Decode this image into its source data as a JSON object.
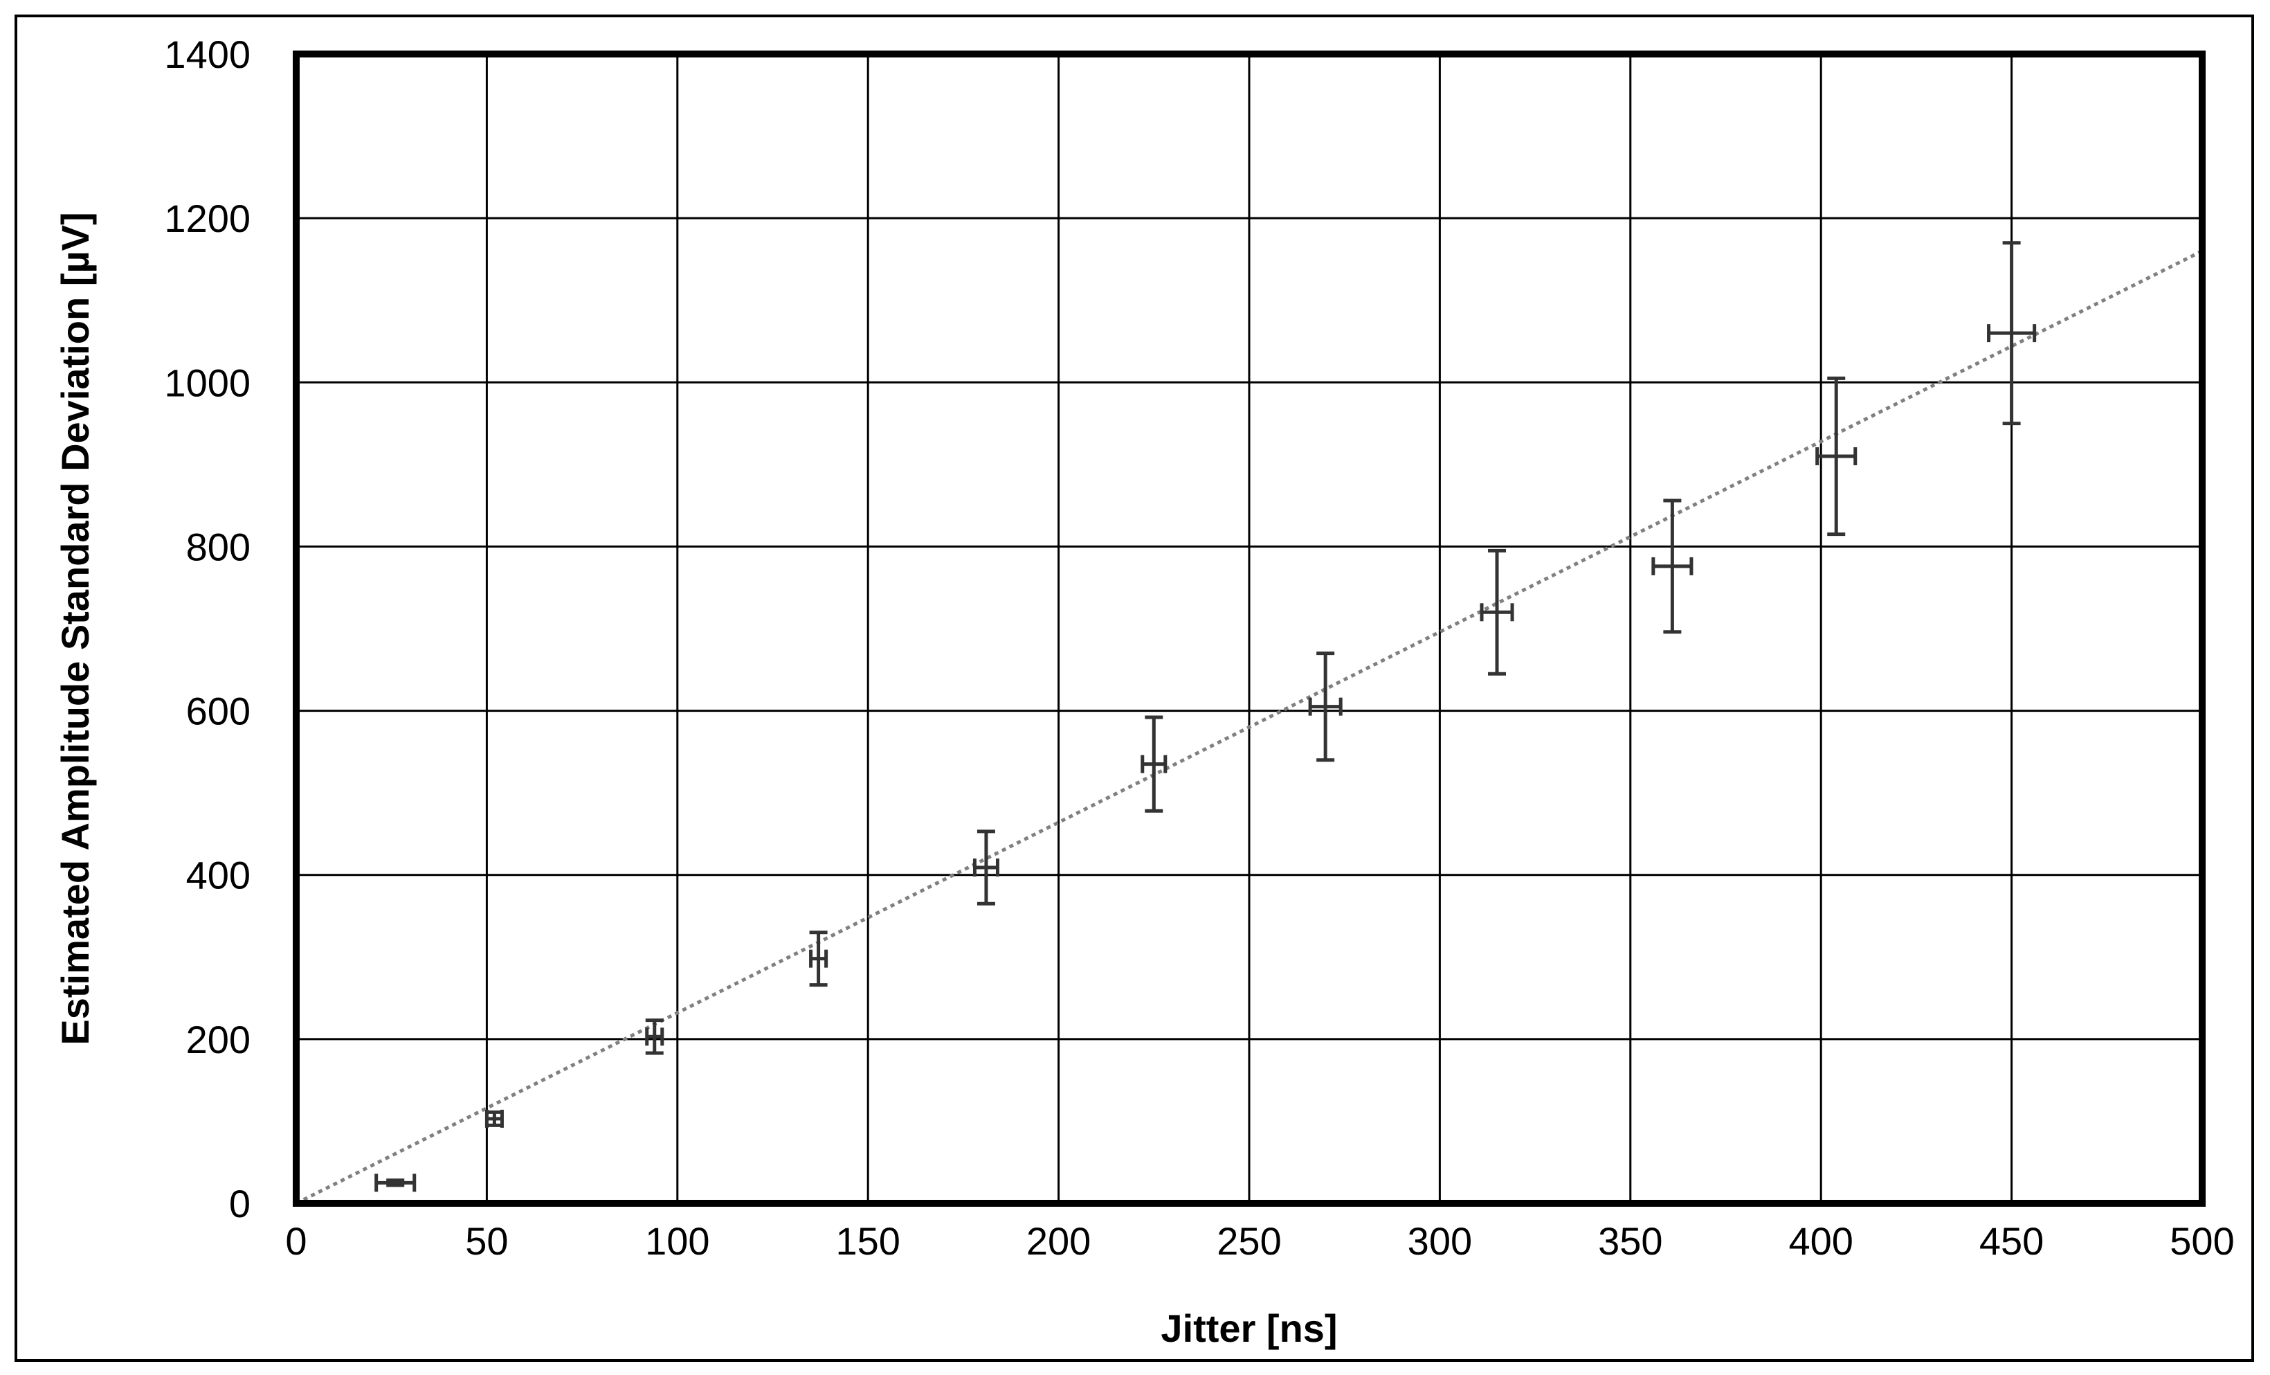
{
  "chart_data": {
    "type": "scatter",
    "title": "",
    "xlabel": "Jitter [ns]",
    "ylabel": "Estimated Amplitude Standard Deviation [µV]",
    "xlim": [
      0,
      500
    ],
    "ylim": [
      0,
      1400
    ],
    "x_ticks": [
      "0",
      "50",
      "100",
      "150",
      "200",
      "250",
      "300",
      "350",
      "400",
      "450",
      "500"
    ],
    "y_ticks": [
      "0",
      "200",
      "400",
      "600",
      "800",
      "1000",
      "1200",
      "1400"
    ],
    "grid": true,
    "legend": "none",
    "series": [
      {
        "points": [
          {
            "x": 26,
            "y": 25,
            "x_err": 5,
            "y_err": 3
          },
          {
            "x": 52,
            "y": 103,
            "x_err": 2,
            "y_err": 8
          },
          {
            "x": 94,
            "y": 203,
            "x_err": 2,
            "y_err": 20
          },
          {
            "x": 137,
            "y": 298,
            "x_err": 2,
            "y_err": 32
          },
          {
            "x": 181,
            "y": 409,
            "x_err": 3,
            "y_err": 44
          },
          {
            "x": 225,
            "y": 535,
            "x_err": 3,
            "y_err": 57
          },
          {
            "x": 270,
            "y": 605,
            "x_err": 4,
            "y_err": 65
          },
          {
            "x": 315,
            "y": 720,
            "x_err": 4,
            "y_err": 75
          },
          {
            "x": 361,
            "y": 776,
            "x_err": 5,
            "y_err": 80
          },
          {
            "x": 404,
            "y": 910,
            "x_err": 5,
            "y_err": 95
          },
          {
            "x": 450,
            "y": 1060,
            "x_err": 6,
            "y_err": 110
          }
        ]
      }
    ],
    "trendline": {
      "style": "dotted",
      "from": {
        "x": 0,
        "y": 0
      },
      "to": {
        "x": 500,
        "y": 1160
      }
    },
    "colors": {
      "marker": "#333333",
      "trendline": "#808080",
      "grid": "#000000",
      "frame": "#000000"
    }
  }
}
